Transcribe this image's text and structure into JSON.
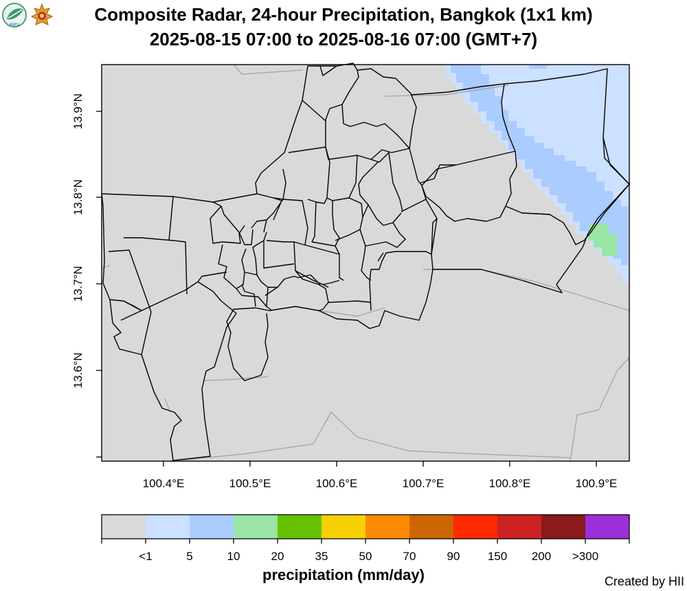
{
  "title_line1": "Composite Radar, 24-hour Precipitation, Bangkok (1x1 km)",
  "title_line2": "2025-08-15 07:00 to 2025-08-16 07:00 (GMT+7)",
  "y_ticks": [
    "13.9°N",
    "13.8°N",
    "13.7°N",
    "13.6°N"
  ],
  "x_ticks": [
    "100.4°E",
    "100.5°E",
    "100.6°E",
    "100.7°E",
    "100.8°E",
    "100.9°E"
  ],
  "colorbar": {
    "title": "precipitation (mm/day)",
    "labels": [
      "<1",
      "5",
      "10",
      "20",
      "35",
      "50",
      "70",
      "90",
      "150",
      "200",
      ">300"
    ],
    "colors": [
      "#d9d9d9",
      "#cce0ff",
      "#aaccff",
      "#99e6a6",
      "#66c200",
      "#f7d000",
      "#ff8a00",
      "#cc6600",
      "#ff2a00",
      "#cc2222",
      "#8b1a1a",
      "#9b30d9"
    ]
  },
  "credit": "Created by HII",
  "colors": {
    "background_rain": "#d9d9d9",
    "light_blue": "#cce0ff",
    "blue": "#aaccff",
    "green": "#99e6a6",
    "boundary": "#000000",
    "roads": "#a8a8a8"
  },
  "icons": [
    "leaf-logo-icon",
    "royal-emblem-icon"
  ]
}
